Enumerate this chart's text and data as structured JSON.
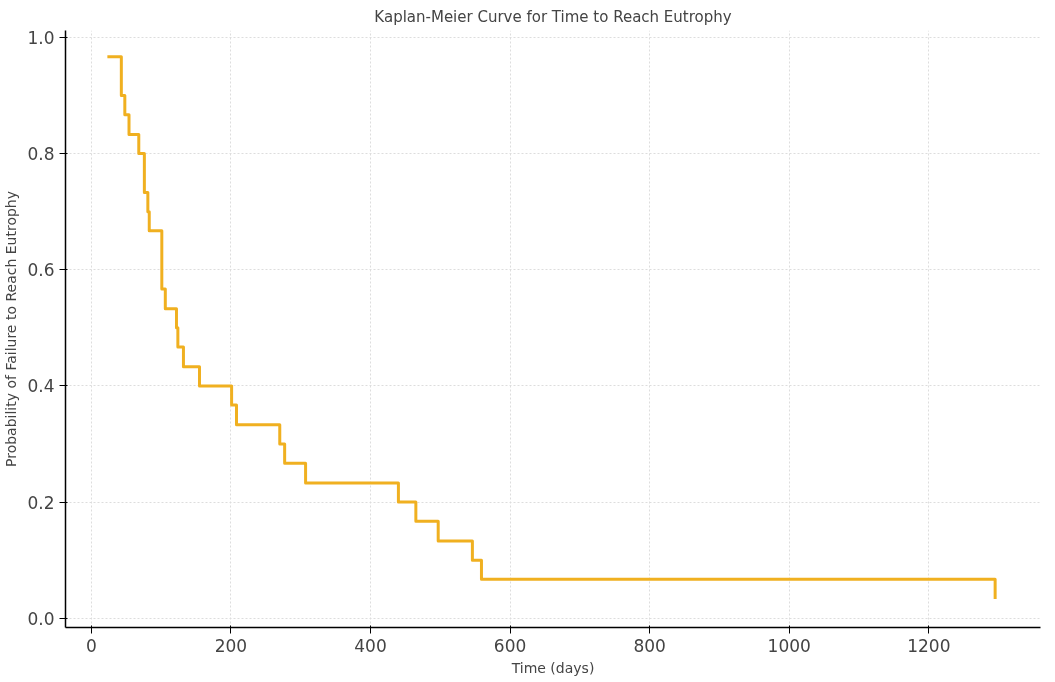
{
  "chart_data": {
    "type": "step",
    "title": "Kaplan-Meier Curve for Time to Reach Eutrophy",
    "xlabel": "Time (days)",
    "ylabel": "Probability of Failure to Reach Eutrophy",
    "x": [
      23,
      43,
      48,
      54,
      68,
      76,
      81,
      83,
      101,
      106,
      122,
      124,
      132,
      155,
      201,
      208,
      270,
      277,
      307,
      440,
      465,
      497,
      546,
      559,
      1295
    ],
    "series": [
      {
        "color": "#f0b020",
        "values": [
          0.967,
          0.9,
          0.867,
          0.833,
          0.8,
          0.733,
          0.7,
          0.667,
          0.567,
          0.533,
          0.5,
          0.467,
          0.433,
          0.4,
          0.367,
          0.333,
          0.3,
          0.267,
          0.233,
          0.2,
          0.167,
          0.133,
          0.1,
          0.067,
          0.033
        ]
      }
    ],
    "xlim": [
      -37,
      1360
    ],
    "ylim": [
      -0.016,
      1.012
    ],
    "xticks": [
      0,
      200,
      400,
      600,
      800,
      1000,
      1200
    ],
    "yticks": [
      {
        "value": 0,
        "label": "0.0"
      },
      {
        "value": 0.2,
        "label": "0.2"
      },
      {
        "value": 0.4,
        "label": "0.4"
      },
      {
        "value": 0.6,
        "label": "0.6"
      },
      {
        "value": 0.8,
        "label": "0.8"
      },
      {
        "value": 1,
        "label": "1.0"
      }
    ],
    "grid": true,
    "line_style": "solid",
    "marker": "none"
  }
}
